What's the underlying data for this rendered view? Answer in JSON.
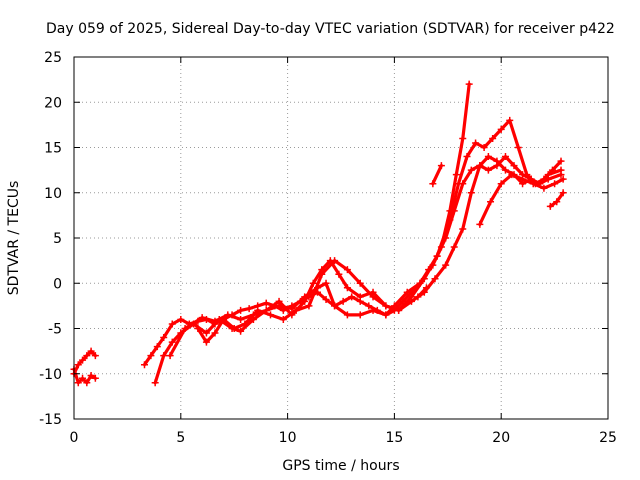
{
  "chart_data": {
    "type": "scatter",
    "title": "Day 059 of 2025, Sidereal Day-to-day VTEC variation (SDTVAR) for receiver p422",
    "xlabel": "GPS time / hours",
    "ylabel": "SDTVAR / TECUs",
    "xlim": [
      0,
      25
    ],
    "ylim": [
      -15,
      25
    ],
    "xticks": [
      0,
      5,
      10,
      15,
      20,
      25
    ],
    "yticks": [
      -15,
      -10,
      -5,
      0,
      5,
      10,
      15,
      20,
      25
    ],
    "grid": true,
    "marker": "plus",
    "color": "#ff0000",
    "series": [
      {
        "x": [
          0.0,
          0.2,
          0.4,
          0.6,
          0.8,
          1.0
        ],
        "y": [
          -9.5,
          -11.0,
          -10.5,
          -11.0,
          -10.2,
          -10.5
        ]
      },
      {
        "x": [
          0.0,
          0.2,
          0.4,
          0.6,
          0.8,
          1.0
        ],
        "y": [
          -10.0,
          -9.0,
          -8.5,
          -8.0,
          -7.5,
          -8.0
        ]
      },
      {
        "x": [
          3.3,
          3.6,
          3.9,
          4.2,
          4.6,
          5.0,
          5.4,
          5.8,
          6.2,
          6.6,
          7.0,
          7.4,
          7.8,
          8.2,
          8.6,
          9.0,
          9.4,
          9.8,
          10.2,
          10.6,
          11.0,
          11.4,
          11.8,
          12.2,
          12.6,
          13.0,
          13.4,
          13.8,
          14.2,
          14.6,
          15.0,
          15.4,
          15.8,
          16.2,
          16.6,
          17.0,
          17.4,
          17.8,
          18.2,
          18.6,
          19.0,
          19.4,
          19.8,
          20.2,
          20.6,
          21.0,
          21.4,
          21.8,
          22.2,
          22.8
        ],
        "y": [
          -9.0,
          -8.0,
          -7.0,
          -6.0,
          -4.5,
          -4.0,
          -4.5,
          -4.2,
          -4.0,
          -4.5,
          -4.0,
          -3.5,
          -3.0,
          -2.8,
          -2.5,
          -2.2,
          -2.5,
          -3.0,
          -2.5,
          -2.0,
          -1.5,
          -1.0,
          -1.8,
          -2.5,
          -2.0,
          -1.5,
          -2.0,
          -2.5,
          -3.0,
          -3.5,
          -3.0,
          -2.0,
          -1.0,
          0.0,
          1.5,
          3.0,
          5.0,
          8.0,
          11.0,
          12.5,
          13.0,
          12.5,
          13.0,
          14.0,
          13.0,
          12.0,
          11.5,
          11.0,
          11.5,
          12.0
        ]
      },
      {
        "x": [
          3.8,
          4.2,
          4.6,
          5.0,
          5.6,
          6.2,
          6.8,
          7.4,
          7.8,
          8.4,
          9.0,
          9.6,
          10.2,
          10.8,
          11.4,
          11.8,
          12.2,
          12.8,
          13.4,
          14.0,
          14.6,
          15.0,
          15.6,
          16.2,
          16.8,
          17.2,
          17.6,
          17.9,
          18.2,
          18.5
        ],
        "y": [
          -11.0,
          -8.0,
          -6.5,
          -5.5,
          -4.5,
          -5.5,
          -4.0,
          -5.0,
          -5.3,
          -4.0,
          -3.0,
          -2.5,
          -2.8,
          -1.5,
          -0.5,
          0.0,
          -2.5,
          -3.5,
          -3.5,
          -3.0,
          -3.5,
          -2.5,
          -1.0,
          0.0,
          2.0,
          4.0,
          8.0,
          12.0,
          16.0,
          22.0
        ]
      },
      {
        "x": [
          4.5,
          5.2,
          6.0,
          6.6,
          7.2,
          7.8,
          8.4,
          9.0,
          9.6,
          10.2,
          10.8,
          11.2,
          11.6,
          12.0,
          12.4,
          12.8,
          13.4,
          14.0,
          14.6,
          15.2,
          15.8,
          16.4,
          17.0,
          17.6,
          18.0,
          18.4,
          18.8,
          19.2,
          19.6,
          20.0,
          20.4,
          20.8,
          21.2,
          21.6,
          22.0,
          22.4,
          22.8
        ],
        "y": [
          -8.0,
          -5.0,
          -3.8,
          -4.2,
          -3.5,
          -4.0,
          -3.5,
          -3.0,
          -2.0,
          -3.5,
          -2.0,
          0.0,
          1.5,
          2.5,
          1.0,
          -0.5,
          -1.5,
          -1.0,
          -2.5,
          -3.0,
          -1.5,
          0.5,
          3.0,
          7.0,
          11.0,
          14.0,
          15.5,
          15.0,
          16.0,
          17.0,
          18.0,
          15.0,
          12.0,
          11.0,
          11.5,
          12.5,
          13.5
        ]
      },
      {
        "x": [
          5.8,
          6.2,
          6.6,
          7.0,
          7.5,
          8.0,
          8.6,
          9.2,
          9.8,
          10.4,
          11.0,
          11.6,
          12.2,
          12.8,
          13.4,
          14.0,
          14.6,
          15.2,
          15.8,
          16.4,
          16.9,
          17.4,
          17.8,
          18.2,
          18.6,
          19.0,
          19.4,
          19.8,
          20.2,
          20.6,
          21.0,
          21.4,
          21.8,
          22.2,
          22.8
        ],
        "y": [
          -5.0,
          -6.5,
          -5.5,
          -4.0,
          -5.0,
          -4.5,
          -3.0,
          -3.5,
          -4.0,
          -3.0,
          -2.5,
          1.0,
          2.5,
          1.5,
          0.0,
          -1.5,
          -2.5,
          -3.0,
          -2.0,
          -1.0,
          0.5,
          2.0,
          4.0,
          6.0,
          10.0,
          13.0,
          14.0,
          13.5,
          12.5,
          12.0,
          11.0,
          11.5,
          11.0,
          12.0,
          12.5
        ]
      },
      {
        "x": [
          16.1,
          16.5
        ],
        "y": [
          -1.5,
          -0.5
        ]
      },
      {
        "x": [
          16.8,
          17.2
        ],
        "y": [
          11.0,
          13.0
        ]
      },
      {
        "x": [
          19.0,
          19.5,
          20.0,
          20.5,
          21.0,
          21.5,
          22.0,
          22.5,
          22.9
        ],
        "y": [
          6.5,
          9.0,
          11.0,
          12.0,
          11.5,
          11.0,
          10.5,
          11.0,
          11.5
        ]
      },
      {
        "x": [
          22.3,
          22.6,
          22.9
        ],
        "y": [
          8.5,
          9.0,
          10.0
        ]
      }
    ]
  }
}
